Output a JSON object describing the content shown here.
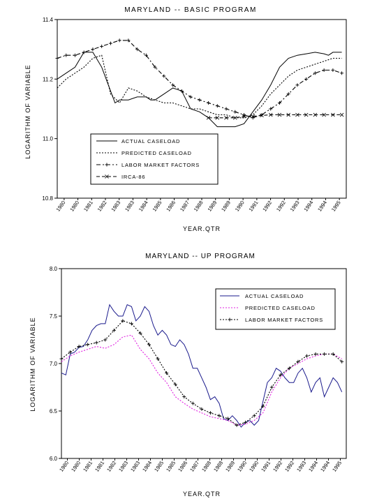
{
  "chart_data": [
    {
      "type": "line",
      "title": "MARYLAND -- BASIC PROGRAM",
      "xlabel": "YEAR.QTR",
      "ylabel": "LOGARITHM OF VARIABLE",
      "ylim": [
        10.8,
        11.4
      ],
      "yticks": [
        10.8,
        11.0,
        11.2,
        11.4
      ],
      "ytick_labels": [
        "10.8",
        "11.0",
        "11.2",
        "11.4"
      ],
      "xlim": [
        1980.0,
        1996.25
      ],
      "x_tick_labels": [
        "1980",
        "1980",
        "1981",
        "1982",
        "1983",
        "1983",
        "1984",
        "1985",
        "1986",
        "1987",
        "1988",
        "1989",
        "1989",
        "1990",
        "1991",
        "1992",
        "1992",
        "1993",
        "1994",
        "1994",
        "1995"
      ],
      "grid": false,
      "legend_position": "center-left",
      "series": [
        {
          "name": "ACTUAL CASELOAD",
          "style": "solid",
          "x": [
            1980.0,
            1980.5,
            1981.0,
            1981.5,
            1982.0,
            1982.5,
            1983.0,
            1983.25,
            1983.5,
            1984.0,
            1984.5,
            1985.0,
            1985.25,
            1985.5,
            1986.0,
            1986.5,
            1987.0,
            1987.25,
            1987.5,
            1988.0,
            1988.5,
            1989.0,
            1989.5,
            1990.0,
            1990.5,
            1991.0,
            1991.5,
            1992.0,
            1992.5,
            1993.0,
            1993.5,
            1994.0,
            1994.5,
            1995.0,
            1995.25,
            1995.5,
            1996.0
          ],
          "values": [
            11.2,
            11.22,
            11.24,
            11.29,
            11.29,
            11.24,
            11.16,
            11.12,
            11.13,
            11.13,
            11.14,
            11.14,
            11.13,
            11.13,
            11.15,
            11.17,
            11.16,
            11.13,
            11.1,
            11.09,
            11.07,
            11.04,
            11.04,
            11.04,
            11.05,
            11.09,
            11.13,
            11.18,
            11.24,
            11.27,
            11.28,
            11.285,
            11.29,
            11.285,
            11.28,
            11.29,
            11.29
          ]
        },
        {
          "name": "PREDICTED CASELOAD",
          "style": "dotted",
          "x": [
            1980.0,
            1980.5,
            1981.0,
            1981.5,
            1982.0,
            1982.5,
            1983.0,
            1983.5,
            1984.0,
            1984.5,
            1985.0,
            1985.5,
            1986.0,
            1986.5,
            1987.0,
            1987.5,
            1988.0,
            1988.5,
            1989.0,
            1989.5,
            1990.0,
            1990.5,
            1991.0,
            1991.5,
            1992.0,
            1992.5,
            1993.0,
            1993.5,
            1994.0,
            1994.5,
            1995.0,
            1995.5,
            1996.0
          ],
          "values": [
            11.17,
            11.2,
            11.22,
            11.24,
            11.27,
            11.28,
            11.15,
            11.12,
            11.17,
            11.16,
            11.14,
            11.13,
            11.12,
            11.12,
            11.11,
            11.1,
            11.1,
            11.09,
            11.08,
            11.08,
            11.07,
            11.07,
            11.08,
            11.11,
            11.15,
            11.18,
            11.21,
            11.23,
            11.24,
            11.25,
            11.26,
            11.27,
            11.27
          ]
        },
        {
          "name": "LABOR MARKET FACTORS",
          "style": "dash-dot",
          "marker": "plus",
          "x": [
            1980.0,
            1980.5,
            1981.0,
            1981.5,
            1982.0,
            1982.5,
            1983.0,
            1983.5,
            1984.0,
            1984.5,
            1985.0,
            1985.5,
            1986.0,
            1986.5,
            1987.0,
            1987.5,
            1988.0,
            1988.5,
            1989.0,
            1989.5,
            1990.0,
            1990.5,
            1991.0,
            1991.5,
            1992.0,
            1992.5,
            1993.0,
            1993.5,
            1994.0,
            1994.5,
            1995.0,
            1995.5,
            1996.0
          ],
          "values": [
            11.27,
            11.28,
            11.28,
            11.29,
            11.3,
            11.31,
            11.32,
            11.33,
            11.33,
            11.3,
            11.28,
            11.24,
            11.21,
            11.18,
            11.16,
            11.14,
            11.13,
            11.12,
            11.11,
            11.1,
            11.09,
            11.08,
            11.07,
            11.08,
            11.1,
            11.12,
            11.15,
            11.18,
            11.2,
            11.22,
            11.23,
            11.23,
            11.22
          ]
        },
        {
          "name": "IRCA-86",
          "style": "dashed",
          "marker": "x",
          "x": [
            1988.5,
            1989.0,
            1989.5,
            1990.0,
            1990.5,
            1991.0,
            1991.5,
            1992.0,
            1992.5,
            1993.0,
            1993.5,
            1994.0,
            1994.5,
            1995.0,
            1995.5,
            1996.0
          ],
          "values": [
            11.07,
            11.07,
            11.07,
            11.07,
            11.075,
            11.075,
            11.078,
            11.08,
            11.08,
            11.08,
            11.08,
            11.08,
            11.08,
            11.08,
            11.08,
            11.08
          ]
        }
      ]
    },
    {
      "type": "line",
      "title": "MARYLAND -- UP PROGRAM",
      "xlabel": "YEAR.QTR",
      "ylabel": "LOGARITHM OF VARIABLE",
      "ylim": [
        6.0,
        8.0
      ],
      "yticks": [
        6.0,
        6.5,
        7.0,
        7.5,
        8.0
      ],
      "ytick_labels": [
        "6.0",
        "6.5",
        "7.0",
        "7.5",
        "8.0"
      ],
      "xlim": [
        1980.0,
        1996.25
      ],
      "x_tick_labels": [
        "1980",
        "1980",
        "1981",
        "1981",
        "1982",
        "1983",
        "1983",
        "1984",
        "1985",
        "1985",
        "1986",
        "1987",
        "1988",
        "1988",
        "1989",
        "1990",
        "1990",
        "1991",
        "1992",
        "1992",
        "1993",
        "1994",
        "1994",
        "1995"
      ],
      "grid": false,
      "legend_position": "top-right",
      "series": [
        {
          "name": "ACTUAL CASELOAD",
          "style": "solid",
          "color": "#1a1a8c",
          "x": [
            1980.0,
            1980.25,
            1980.5,
            1980.75,
            1981.0,
            1981.25,
            1981.5,
            1981.75,
            1982.0,
            1982.25,
            1982.5,
            1982.75,
            1983.0,
            1983.25,
            1983.5,
            1983.75,
            1984.0,
            1984.25,
            1984.5,
            1984.75,
            1985.0,
            1985.25,
            1985.5,
            1985.75,
            1986.0,
            1986.25,
            1986.5,
            1986.75,
            1987.0,
            1987.25,
            1987.5,
            1987.75,
            1988.0,
            1988.25,
            1988.5,
            1988.75,
            1989.0,
            1989.25,
            1989.5,
            1989.75,
            1990.0,
            1990.25,
            1990.5,
            1990.75,
            1991.0,
            1991.25,
            1991.5,
            1991.75,
            1992.0,
            1992.25,
            1992.5,
            1992.75,
            1993.0,
            1993.25,
            1993.5,
            1993.75,
            1994.0,
            1994.25,
            1994.5,
            1994.75,
            1995.0,
            1995.25,
            1995.5,
            1995.75,
            1996.0
          ],
          "values": [
            6.9,
            6.88,
            7.1,
            7.12,
            7.17,
            7.18,
            7.25,
            7.35,
            7.4,
            7.42,
            7.42,
            7.62,
            7.55,
            7.5,
            7.5,
            7.62,
            7.6,
            7.45,
            7.5,
            7.6,
            7.55,
            7.4,
            7.3,
            7.35,
            7.3,
            7.2,
            7.18,
            7.25,
            7.2,
            7.1,
            6.95,
            6.95,
            6.85,
            6.75,
            6.62,
            6.65,
            6.58,
            6.42,
            6.4,
            6.45,
            6.4,
            6.33,
            6.38,
            6.4,
            6.35,
            6.4,
            6.6,
            6.8,
            6.85,
            6.95,
            6.92,
            6.85,
            6.8,
            6.8,
            6.9,
            6.95,
            6.85,
            6.7,
            6.8,
            6.85,
            6.65,
            6.75,
            6.85,
            6.8,
            6.7
          ]
        },
        {
          "name": "PREDICTED CASELOAD",
          "style": "dotted",
          "color": "#e020e0",
          "x": [
            1980.0,
            1980.5,
            1981.0,
            1981.5,
            1982.0,
            1982.5,
            1983.0,
            1983.5,
            1984.0,
            1984.5,
            1985.0,
            1985.5,
            1986.0,
            1986.5,
            1987.0,
            1987.5,
            1988.0,
            1988.5,
            1989.0,
            1989.5,
            1990.0,
            1990.5,
            1991.0,
            1991.5,
            1992.0,
            1992.5,
            1993.0,
            1993.5,
            1994.0,
            1994.5,
            1995.0,
            1995.5,
            1996.0
          ],
          "values": [
            7.02,
            7.08,
            7.12,
            7.15,
            7.18,
            7.16,
            7.2,
            7.28,
            7.3,
            7.15,
            7.05,
            6.9,
            6.8,
            6.65,
            6.58,
            6.52,
            6.48,
            6.44,
            6.42,
            6.4,
            6.35,
            6.36,
            6.4,
            6.48,
            6.7,
            6.85,
            6.95,
            7.0,
            7.05,
            7.08,
            7.1,
            7.1,
            7.05
          ]
        },
        {
          "name": "LABOR MARKET FACTORS",
          "style": "dotted",
          "marker": "plus",
          "color": "#000000",
          "x": [
            1980.0,
            1980.5,
            1981.0,
            1981.5,
            1982.0,
            1982.5,
            1983.0,
            1983.5,
            1984.0,
            1984.5,
            1985.0,
            1985.5,
            1986.0,
            1986.5,
            1987.0,
            1987.5,
            1988.0,
            1988.5,
            1989.0,
            1989.5,
            1990.0,
            1990.5,
            1991.0,
            1991.5,
            1992.0,
            1992.5,
            1993.0,
            1993.5,
            1994.0,
            1994.5,
            1995.0,
            1995.5,
            1996.0
          ],
          "values": [
            7.05,
            7.12,
            7.18,
            7.2,
            7.22,
            7.25,
            7.35,
            7.45,
            7.42,
            7.32,
            7.2,
            7.05,
            6.9,
            6.78,
            6.65,
            6.58,
            6.52,
            6.48,
            6.45,
            6.42,
            6.35,
            6.38,
            6.45,
            6.55,
            6.75,
            6.88,
            6.95,
            7.02,
            7.08,
            7.1,
            7.1,
            7.1,
            7.02
          ]
        }
      ]
    }
  ]
}
